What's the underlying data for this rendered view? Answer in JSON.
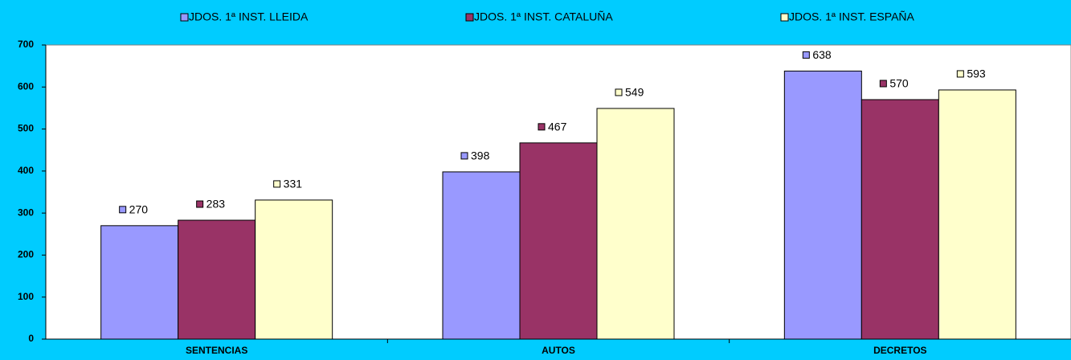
{
  "chart_data": {
    "type": "bar",
    "categories": [
      "SENTENCIAS",
      "AUTOS",
      "DECRETOS"
    ],
    "series": [
      {
        "name": "JDOS. 1ª INST. LLEIDA",
        "color": "#9999ff",
        "values": [
          270,
          398,
          638
        ]
      },
      {
        "name": "JDOS. 1ª INST. CATALUÑA",
        "color": "#993366",
        "values": [
          283,
          467,
          570
        ]
      },
      {
        "name": "JDOS. 1ª INST. ESPAÑA",
        "color": "#ffffcc",
        "values": [
          331,
          549,
          593
        ]
      }
    ],
    "ylim": [
      0,
      700
    ],
    "yticks": [
      0,
      100,
      200,
      300,
      400,
      500,
      600,
      700
    ],
    "grid": false,
    "legend": "top"
  }
}
